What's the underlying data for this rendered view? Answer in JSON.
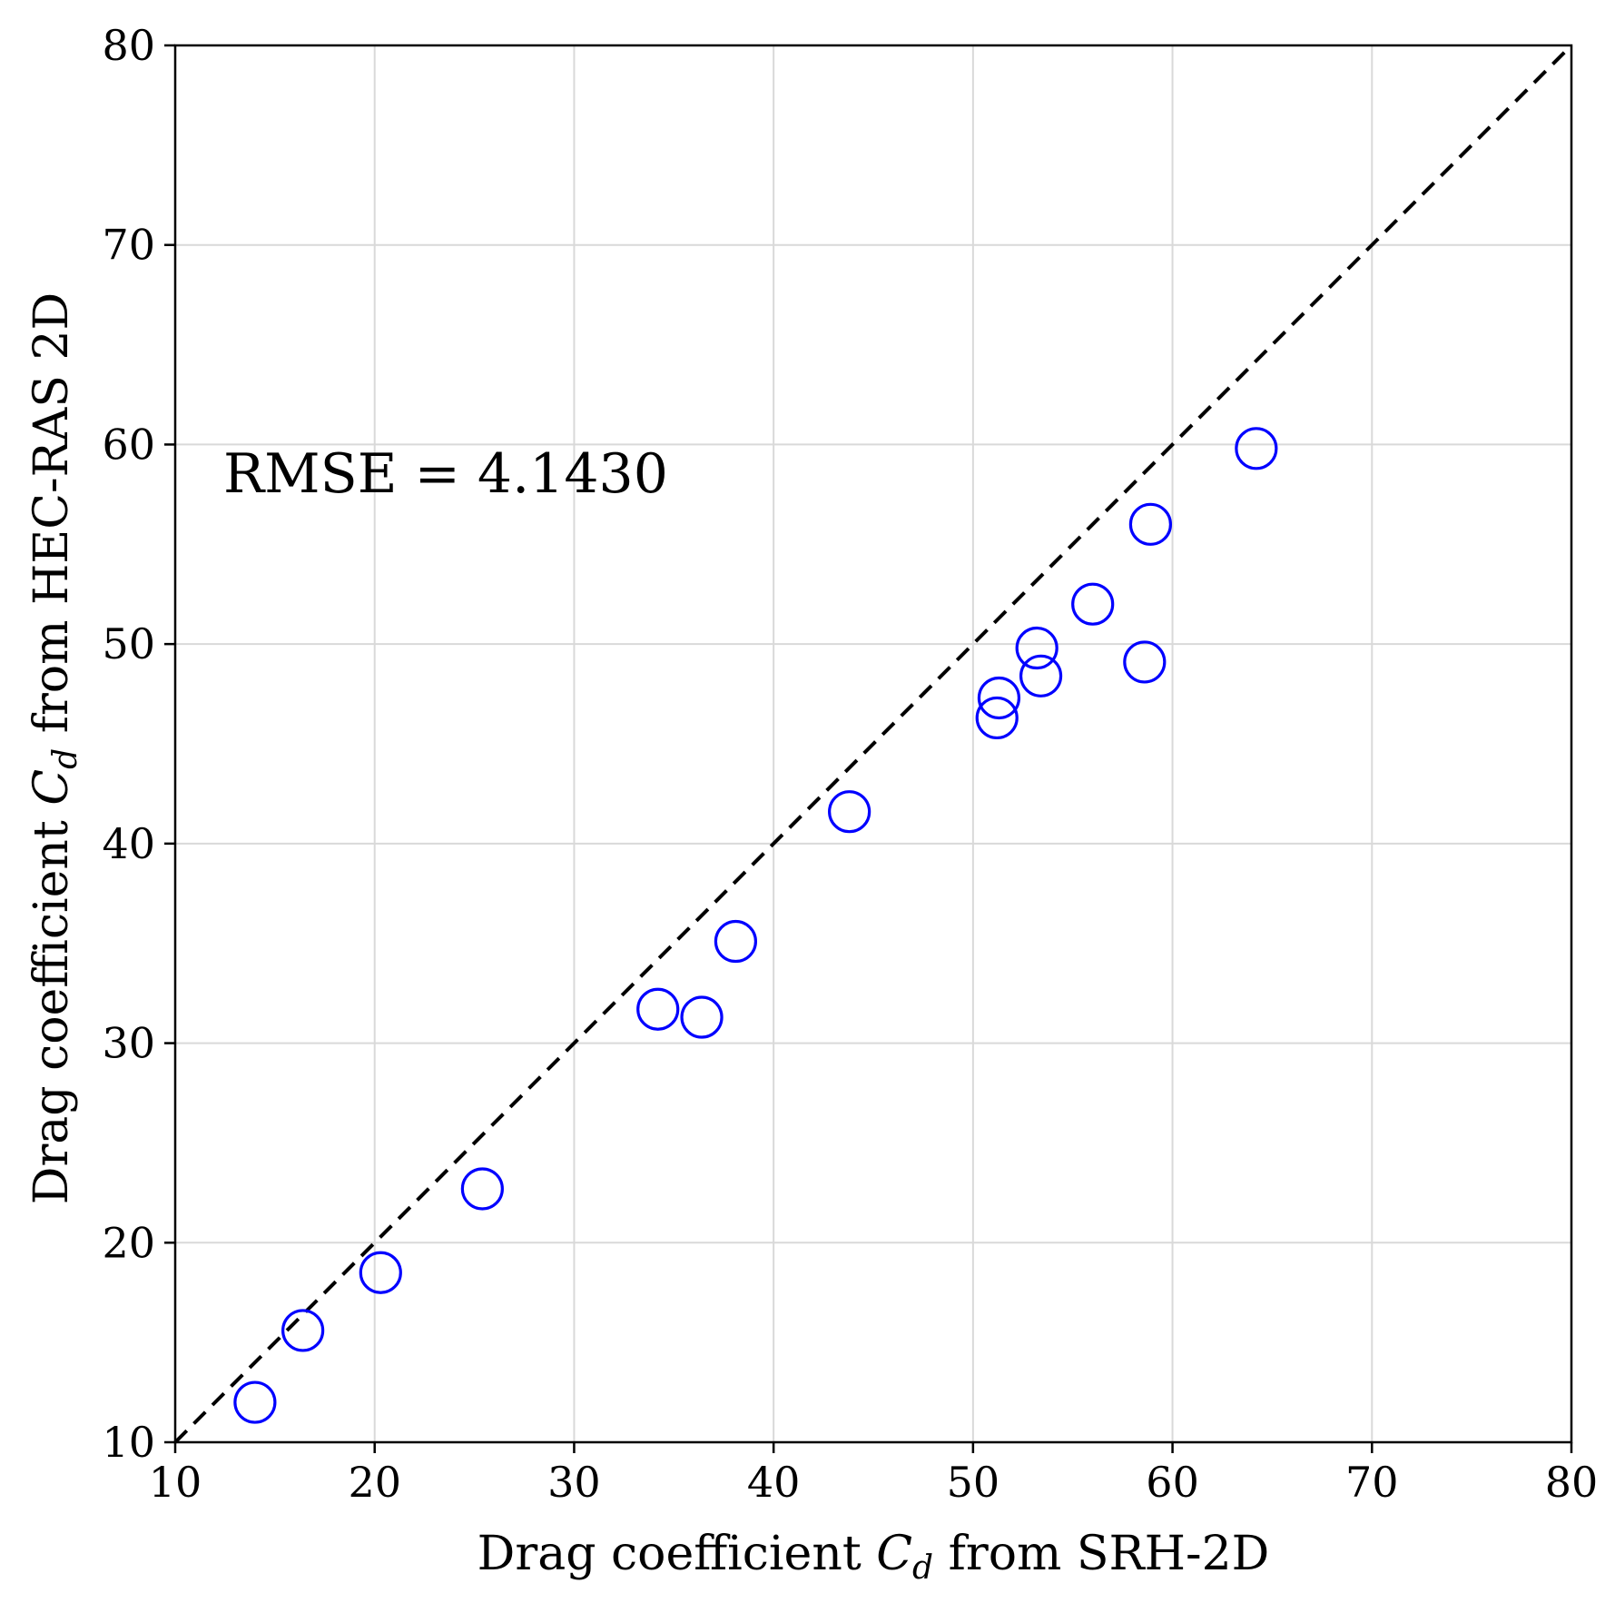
{
  "chart_data": {
    "type": "scatter",
    "title": "",
    "xlabel": {
      "text": "Drag coefficient ",
      "math_main": "C",
      "math_sub": "d",
      "suffix": " from SRH-2D"
    },
    "ylabel": {
      "text": "Drag coefficient ",
      "math_main": "C",
      "math_sub": "d",
      "suffix": " from HEC-RAS 2D"
    },
    "xlim": [
      10,
      80
    ],
    "ylim": [
      10,
      80
    ],
    "xticks": [
      "10",
      "20",
      "30",
      "40",
      "50",
      "60",
      "70",
      "80"
    ],
    "yticks": [
      "10",
      "20",
      "30",
      "40",
      "50",
      "60",
      "70",
      "80"
    ],
    "grid": true,
    "reference_line": {
      "style": "dashed",
      "color": "#000000",
      "from": [
        10,
        10
      ],
      "to": [
        80,
        80
      ]
    },
    "annotation": "RMSE = 4.1430",
    "marker": {
      "shape": "open-circle",
      "color": "#0000ff"
    },
    "points": [
      {
        "x": 14.0,
        "y": 12.0
      },
      {
        "x": 16.4,
        "y": 15.6
      },
      {
        "x": 20.3,
        "y": 18.5
      },
      {
        "x": 25.4,
        "y": 22.7
      },
      {
        "x": 34.2,
        "y": 31.7
      },
      {
        "x": 36.4,
        "y": 31.3
      },
      {
        "x": 38.1,
        "y": 35.1
      },
      {
        "x": 43.8,
        "y": 41.6
      },
      {
        "x": 51.2,
        "y": 46.3
      },
      {
        "x": 51.3,
        "y": 47.3
      },
      {
        "x": 53.2,
        "y": 49.8
      },
      {
        "x": 53.4,
        "y": 48.4
      },
      {
        "x": 56.0,
        "y": 52.0
      },
      {
        "x": 58.6,
        "y": 49.1
      },
      {
        "x": 58.9,
        "y": 56.0
      },
      {
        "x": 64.2,
        "y": 59.8
      }
    ]
  }
}
